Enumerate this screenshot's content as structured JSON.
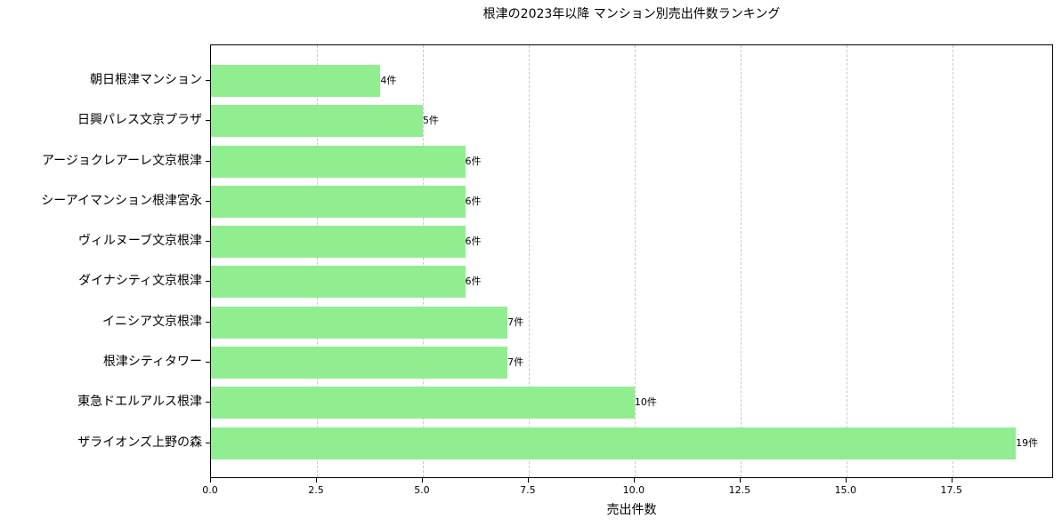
{
  "chart_data": {
    "type": "bar",
    "orientation": "horizontal",
    "title": "根津の2023年以降 マンション別売出件数ランキング",
    "xlabel": "売出件数",
    "ylabel": "",
    "xlim": [
      0,
      19.9
    ],
    "x_ticks": [
      "0.0",
      "2.5",
      "5.0",
      "7.5",
      "10.0",
      "12.5",
      "15.0",
      "17.5"
    ],
    "grid": "x dashed",
    "bar_color": "#90ee90",
    "categories": [
      "朝日根津マンション",
      "日興パレス文京プラザ",
      "アージョクレアーレ文京根津",
      "シーアイマンション根津宮永",
      "ヴィルヌーブ文京根津",
      "ダイナシティ文京根津",
      "イニシア文京根津",
      "根津シティタワー",
      "東急ドエルアルス根津",
      "ザライオンズ上野の森"
    ],
    "values": [
      4,
      5,
      6,
      6,
      6,
      6,
      7,
      7,
      10,
      19
    ],
    "value_labels": [
      "4件",
      "5件",
      "6件",
      "6件",
      "6件",
      "6件",
      "7件",
      "7件",
      "10件",
      "19件"
    ]
  }
}
